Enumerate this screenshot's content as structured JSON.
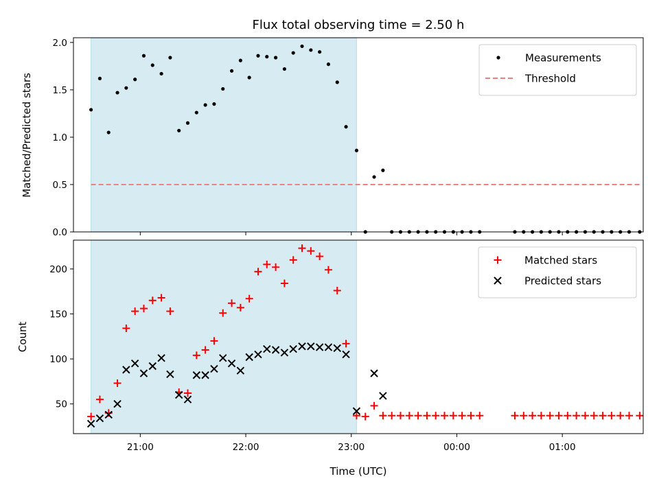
{
  "chart_data": [
    {
      "type": "scatter",
      "title": "Flux total observing time = 2.50 h",
      "ylabel": "Matched/Predicted stars",
      "xlabel": "",
      "ylim": [
        0,
        2.05
      ],
      "xlim": [
        "20:22",
        "01:46"
      ],
      "yticks": [
        "0.0",
        "0.5",
        "1.0",
        "1.5",
        "2.0"
      ],
      "ytick_values": [
        0,
        0.5,
        1.0,
        1.5,
        2.0
      ],
      "legend": {
        "placement": "top-right",
        "entries": [
          "Measurements",
          "Threshold"
        ]
      },
      "shaded_span": [
        "20:32",
        "23:03"
      ],
      "shade_color": "#add8e6",
      "threshold": {
        "name": "Threshold",
        "y": 0.5,
        "x": [
          "20:32",
          "01:44"
        ],
        "color": "#f08080"
      },
      "series": [
        {
          "name": "Measurements",
          "marker": "dot",
          "color": "#000000",
          "x": [
            "20:32",
            "20:37",
            "20:42",
            "20:47",
            "20:52",
            "20:57",
            "21:02",
            "21:07",
            "21:12",
            "21:17",
            "21:22",
            "21:27",
            "21:32",
            "21:37",
            "21:42",
            "21:47",
            "21:52",
            "21:57",
            "22:02",
            "22:07",
            "22:12",
            "22:17",
            "22:22",
            "22:27",
            "22:32",
            "22:37",
            "22:42",
            "22:47",
            "22:52",
            "22:57",
            "23:03",
            "23:08",
            "23:13",
            "23:18",
            "23:23",
            "23:28",
            "23:33",
            "23:38",
            "23:43",
            "23:48",
            "23:53",
            "23:58",
            "00:03",
            "00:08",
            "00:13",
            "00:33",
            "00:38",
            "00:43",
            "00:48",
            "00:53",
            "00:58",
            "01:03",
            "01:08",
            "01:13",
            "01:18",
            "01:23",
            "01:28",
            "01:33",
            "01:38",
            "01:44"
          ],
          "y": [
            1.29,
            1.62,
            1.05,
            1.47,
            1.52,
            1.61,
            1.86,
            1.76,
            1.67,
            1.84,
            1.07,
            1.15,
            1.26,
            1.34,
            1.35,
            1.51,
            1.7,
            1.81,
            1.63,
            1.86,
            1.85,
            1.84,
            1.72,
            1.89,
            1.96,
            1.92,
            1.9,
            1.77,
            1.58,
            1.11,
            0.86,
            0.0,
            0.58,
            0.65,
            0.0,
            0.0,
            0.0,
            0.0,
            0.0,
            0.0,
            0.0,
            0.0,
            0.0,
            0.0,
            0.0,
            0.0,
            0.0,
            0.0,
            0.0,
            0.0,
            0.0,
            0.0,
            0.0,
            0.0,
            0.0,
            0.0,
            0.0,
            0.0,
            0.0,
            0.0
          ]
        }
      ]
    },
    {
      "type": "scatter",
      "title": "",
      "ylabel": "Count",
      "xlabel": "Time (UTC)",
      "ylim": [
        17,
        232
      ],
      "xlim": [
        "20:22",
        "01:46"
      ],
      "yticks": [
        "50",
        "100",
        "150",
        "200"
      ],
      "ytick_values": [
        50,
        100,
        150,
        200
      ],
      "xticks": [
        "21:00",
        "22:00",
        "23:00",
        "00:00",
        "01:00"
      ],
      "legend": {
        "placement": "top-right",
        "entries": [
          "Matched stars",
          "Predicted stars"
        ]
      },
      "shaded_span": [
        "20:32",
        "23:03"
      ],
      "series": [
        {
          "name": "Matched stars",
          "marker": "plus",
          "color": "#ff0000",
          "x": [
            "20:32",
            "20:37",
            "20:42",
            "20:47",
            "20:52",
            "20:57",
            "21:02",
            "21:07",
            "21:12",
            "21:17",
            "21:22",
            "21:27",
            "21:32",
            "21:37",
            "21:42",
            "21:47",
            "21:52",
            "21:57",
            "22:02",
            "22:07",
            "22:12",
            "22:17",
            "22:22",
            "22:27",
            "22:32",
            "22:37",
            "22:42",
            "22:47",
            "22:52",
            "22:57",
            "23:03",
            "23:08",
            "23:13",
            "23:18",
            "23:23",
            "23:28",
            "23:33",
            "23:38",
            "23:43",
            "23:48",
            "23:53",
            "23:58",
            "00:03",
            "00:08",
            "00:13",
            "00:33",
            "00:38",
            "00:43",
            "00:48",
            "00:53",
            "00:58",
            "01:03",
            "01:08",
            "01:13",
            "01:18",
            "01:23",
            "01:28",
            "01:33",
            "01:38",
            "01:44"
          ],
          "y": [
            36,
            55,
            40,
            73,
            134,
            153,
            156,
            165,
            168,
            153,
            63,
            62,
            104,
            110,
            120,
            151,
            162,
            157,
            167,
            197,
            205,
            202,
            184,
            210,
            223,
            220,
            214,
            199,
            176,
            117,
            37,
            36,
            48,
            37,
            37,
            37,
            37,
            37,
            37,
            37,
            37,
            37,
            37,
            37,
            37,
            37,
            37,
            37,
            37,
            37,
            37,
            37,
            37,
            37,
            37,
            37,
            37,
            37,
            37,
            37
          ]
        },
        {
          "name": "Predicted stars",
          "marker": "x",
          "color": "#000000",
          "x": [
            "20:32",
            "20:37",
            "20:42",
            "20:47",
            "20:52",
            "20:57",
            "21:02",
            "21:07",
            "21:12",
            "21:17",
            "21:22",
            "21:27",
            "21:32",
            "21:37",
            "21:42",
            "21:47",
            "21:52",
            "21:57",
            "22:02",
            "22:07",
            "22:12",
            "22:17",
            "22:22",
            "22:27",
            "22:32",
            "22:37",
            "22:42",
            "22:47",
            "22:52",
            "22:57",
            "23:03",
            "23:13",
            "23:18"
          ],
          "y": [
            28,
            34,
            38,
            50,
            88,
            95,
            84,
            92,
            101,
            83,
            60,
            55,
            82,
            82,
            89,
            101,
            95,
            87,
            102,
            105,
            111,
            110,
            107,
            111,
            114,
            114,
            113,
            113,
            112,
            105,
            42,
            84,
            59
          ]
        }
      ]
    }
  ]
}
